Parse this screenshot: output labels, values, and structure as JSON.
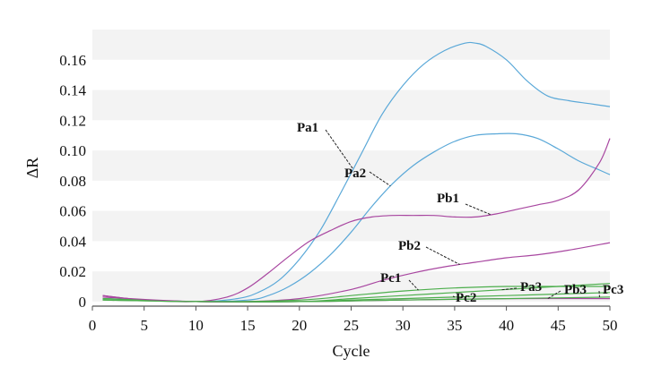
{
  "chart_data": {
    "type": "line",
    "xlabel": "Cycle",
    "ylabel": "ΔR",
    "xlim": [
      0,
      50
    ],
    "ylim": [
      -0.003,
      0.18
    ],
    "x_ticks": [
      "0",
      "5",
      "10",
      "15",
      "20",
      "25",
      "30",
      "35",
      "40",
      "45",
      "50"
    ],
    "y_ticks": [
      {
        "value": 0,
        "label": "0"
      },
      {
        "value": 0.02,
        "label": "0.02"
      },
      {
        "value": 0.04,
        "label": "0.04"
      },
      {
        "value": 0.06,
        "label": "0.06"
      },
      {
        "value": 0.08,
        "label": "0.08"
      },
      {
        "value": 0.1,
        "label": "0.10"
      },
      {
        "value": 0.12,
        "label": "0.12"
      },
      {
        "value": 0.14,
        "label": "0.14"
      },
      {
        "value": 0.16,
        "label": "0.16"
      }
    ],
    "grid": "alternating horizontal bands",
    "colors": {
      "Pa": "#5aa8d8",
      "Pb": "#a846a0",
      "Pc": "#4cae4c"
    },
    "series": [
      {
        "name": "Pa1",
        "color": "#5aa8d8",
        "x": [
          1,
          10,
          14,
          16,
          18,
          20,
          22,
          24,
          26,
          28,
          30,
          32,
          34,
          36,
          37,
          38,
          40,
          42,
          44,
          46,
          48,
          50
        ],
        "y": [
          0.002,
          0.0,
          0.002,
          0.006,
          0.014,
          0.028,
          0.047,
          0.072,
          0.098,
          0.124,
          0.143,
          0.157,
          0.166,
          0.171,
          0.171,
          0.169,
          0.16,
          0.146,
          0.136,
          0.133,
          0.131,
          0.129
        ]
      },
      {
        "name": "Pa2",
        "color": "#5aa8d8",
        "x": [
          1,
          10,
          15,
          17,
          19,
          21,
          23,
          25,
          27,
          29,
          31,
          33,
          35,
          37,
          39,
          41,
          43,
          45,
          47,
          49,
          50
        ],
        "y": [
          0.002,
          0.0,
          0.001,
          0.004,
          0.01,
          0.019,
          0.031,
          0.046,
          0.063,
          0.078,
          0.09,
          0.099,
          0.106,
          0.11,
          0.111,
          0.111,
          0.108,
          0.101,
          0.093,
          0.087,
          0.084
        ]
      },
      {
        "name": "Pb1",
        "color": "#a846a0",
        "x": [
          1,
          5,
          10,
          13,
          15,
          17,
          19,
          21,
          23,
          25,
          27,
          29,
          31,
          33,
          35,
          37,
          39,
          41,
          43,
          45,
          47,
          49,
          50
        ],
        "y": [
          0.004,
          0.001,
          0.0,
          0.003,
          0.009,
          0.019,
          0.03,
          0.04,
          0.047,
          0.053,
          0.056,
          0.057,
          0.057,
          0.057,
          0.056,
          0.056,
          0.058,
          0.061,
          0.064,
          0.067,
          0.074,
          0.092,
          0.108
        ]
      },
      {
        "name": "Pb2",
        "color": "#a846a0",
        "x": [
          1,
          5,
          10,
          15,
          20,
          25,
          28,
          31,
          34,
          37,
          40,
          43,
          46,
          50
        ],
        "y": [
          0.004,
          0.001,
          0.0,
          0.0,
          0.002,
          0.008,
          0.014,
          0.019,
          0.023,
          0.026,
          0.029,
          0.031,
          0.034,
          0.039
        ]
      },
      {
        "name": "Pc1",
        "color": "#4cae4c",
        "x": [
          1,
          10,
          20,
          25,
          30,
          35,
          40,
          45,
          50
        ],
        "y": [
          0.002,
          0.0,
          0.001,
          0.004,
          0.007,
          0.009,
          0.01,
          0.01,
          0.01
        ]
      },
      {
        "name": "Pa3",
        "color": "#4cae4c",
        "x": [
          1,
          10,
          20,
          25,
          30,
          35,
          40,
          45,
          50
        ],
        "y": [
          0.002,
          0.0,
          0.0,
          0.002,
          0.004,
          0.006,
          0.008,
          0.01,
          0.012
        ]
      },
      {
        "name": "Pb3",
        "color": "#a846a0",
        "x": [
          1,
          10,
          20,
          30,
          40,
          50
        ],
        "y": [
          0.003,
          0.0,
          0.0,
          0.001,
          0.002,
          0.002
        ]
      },
      {
        "name": "Pc2",
        "color": "#4cae4c",
        "x": [
          1,
          10,
          20,
          25,
          30,
          35,
          40,
          45,
          50
        ],
        "y": [
          0.001,
          0.0,
          0.0,
          0.001,
          0.002,
          0.003,
          0.004,
          0.005,
          0.006
        ]
      },
      {
        "name": "Pc3",
        "color": "#4cae4c",
        "x": [
          1,
          10,
          20,
          30,
          40,
          50
        ],
        "y": [
          0.001,
          0.0,
          0.0,
          0.001,
          0.002,
          0.003
        ]
      }
    ],
    "annotations": [
      {
        "text": "Pa1",
        "series": "Pa1",
        "at_x": 25.2
      },
      {
        "text": "Pa2",
        "series": "Pa2",
        "at_x": 28.8
      },
      {
        "text": "Pb1",
        "series": "Pb1",
        "at_x": 38.5
      },
      {
        "text": "Pb2",
        "series": "Pb2",
        "at_x": 35.5
      },
      {
        "text": "Pc1",
        "series": "Pc1",
        "at_x": 31.5
      },
      {
        "text": "Pc2",
        "series": "Pc2",
        "at_x": 35.0
      },
      {
        "text": "Pa3",
        "series": "Pa3",
        "at_x": 39.5
      },
      {
        "text": "Pb3",
        "series": "Pb3",
        "at_x": 44.0
      },
      {
        "text": "Pc3",
        "series": "Pc3",
        "at_x": 49.0
      }
    ]
  }
}
